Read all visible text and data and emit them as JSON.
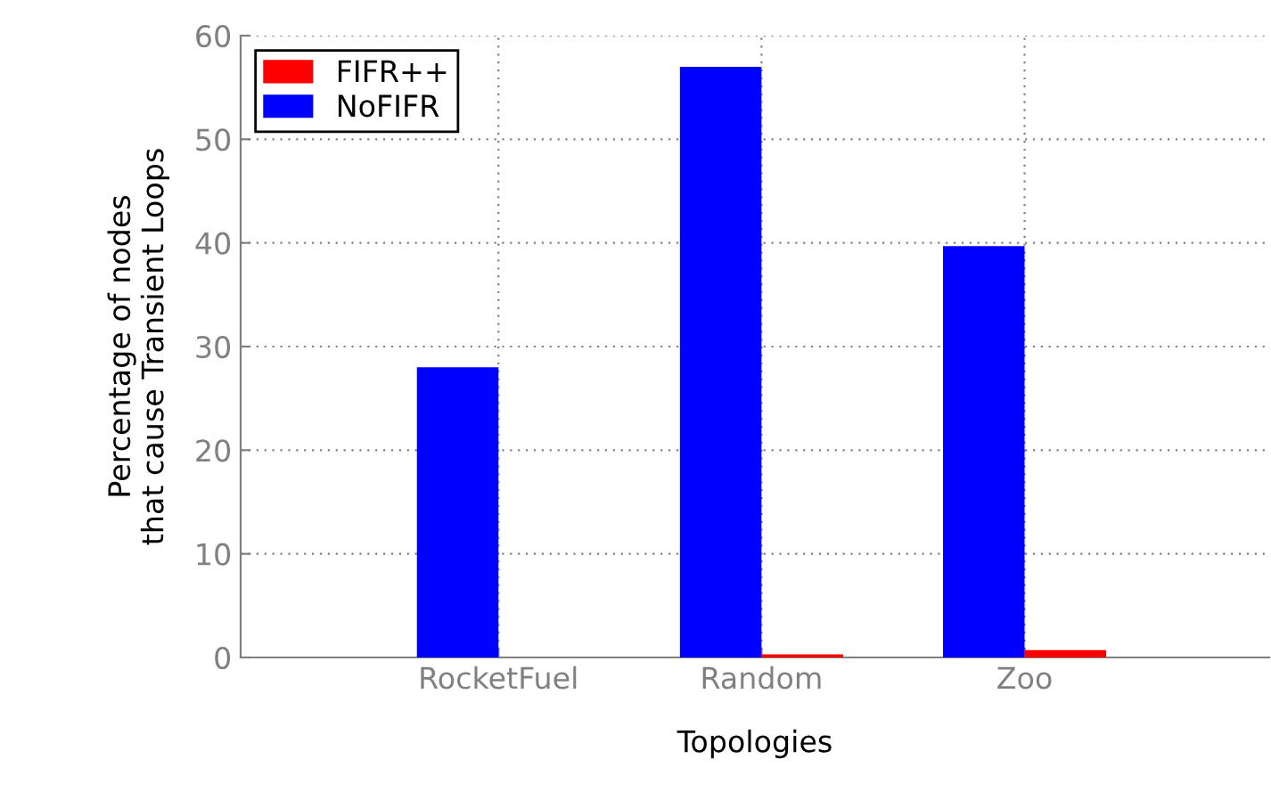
{
  "chart_data": {
    "type": "bar",
    "xlabel": "Topologies",
    "ylabel": "Percentage of nodes\nthat cause Transient Loops",
    "categories": [
      "RocketFuel",
      "Random",
      "Zoo"
    ],
    "series": [
      {
        "name": "NoFIFR",
        "color": "#0000ff",
        "values": [
          28,
          57,
          39.7
        ]
      },
      {
        "name": "FIFR++",
        "color": "#ff0000",
        "values": [
          0,
          0.3,
          0.7
        ]
      }
    ],
    "ylim": [
      0,
      60
    ],
    "yticks": [
      0,
      10,
      20,
      30,
      40,
      50,
      60
    ],
    "grid": true,
    "legend": "top left"
  }
}
